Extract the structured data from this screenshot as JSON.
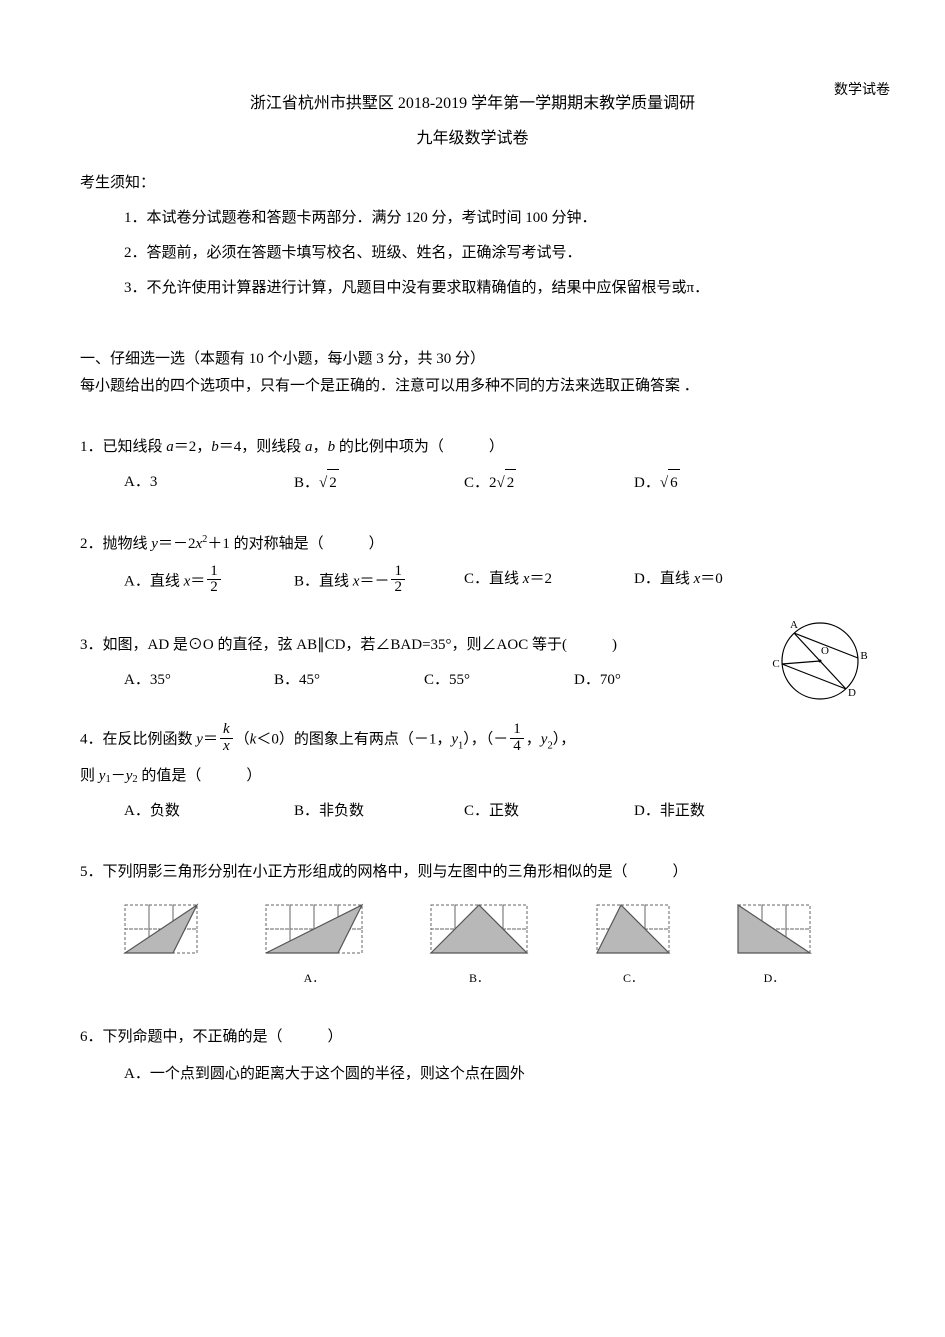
{
  "header_right": "数学试卷",
  "title1": "浙江省杭州市拱墅区 2018-2019 学年第一学期期末教学质量调研",
  "title2": "九年级数学试卷",
  "notice_head": "考生须知：",
  "notice": {
    "n1": "1．本试卷分试题卷和答题卡两部分．满分 120 分，考试时间 100 分钟．",
    "n2": "2．答题前，必须在答题卡填写校名、班级、姓名，正确涂写考试号．",
    "n3": "3．不允许使用计算器进行计算，凡题目中没有要求取精确值的，结果中应保留根号或π．"
  },
  "section1_line1": "一、仔细选一选（本题有 10 个小题，每小题 3 分，共 30 分）",
  "section1_line2": "每小题给出的四个选项中，只有一个是正确的．注意可以用多种不同的方法来选取正确答案 ．",
  "q1": {
    "stem_a": "1．已知线段 ",
    "stem_b": "a",
    "stem_c": "＝2，",
    "stem_d": "b",
    "stem_e": "＝4，则线段 ",
    "stem_f": "a",
    "stem_g": "，",
    "stem_h": "b",
    "stem_i": " 的比例中项为（　　　）",
    "A": "A．3",
    "B_pre": "B．",
    "B_rad": "2",
    "C_pre": "C．2",
    "C_rad": "2",
    "D_pre": "D．",
    "D_rad": "6"
  },
  "q2": {
    "stem_a": "2．抛物线 ",
    "stem_b": "y",
    "stem_c": "＝－2",
    "stem_d": "x",
    "stem_e": "＋1 的对称轴是（　　　）",
    "A_pre": "A．直线 ",
    "A_x": "x",
    "A_eq": "＝",
    "A_num": "1",
    "A_den": "2",
    "B_pre": "B．直线 ",
    "B_x": "x",
    "B_eq": "＝－",
    "B_num": "1",
    "B_den": "2",
    "C_pre": "C．直线 ",
    "C_x": "x",
    "C_val": "＝2",
    "D_pre": "D．直线 ",
    "D_x": "x",
    "D_val": "＝0"
  },
  "q3": {
    "stem": "3．如图，AD 是⊙O 的直径，弦 AB∥CD，若∠BAD=35°，则∠AOC 等于(　　　)",
    "A": "A．35°",
    "B": "B．45°",
    "C": "C．55°",
    "D": "D．70°",
    "labels": {
      "A": "A",
      "B": "B",
      "C": "C",
      "D": "D",
      "O": "O"
    }
  },
  "q4": {
    "stem_a": "4．在反比例函数 ",
    "stem_y": "y",
    "stem_eq": "＝",
    "stem_num": "k",
    "stem_den": "x",
    "stem_b": "（",
    "stem_k": "k",
    "stem_c": "＜0）的图象上有两点（－1，",
    "stem_y1": "y",
    "stem_d": "），（－",
    "stem_fnum": "1",
    "stem_fden": "4",
    "stem_e": "，",
    "stem_y2": "y",
    "stem_f": "），",
    "line2_a": "则 ",
    "line2_y1": "y",
    "line2_b": "－",
    "line2_y2": "y",
    "line2_c": " 的值是（　　　）",
    "A": "A．负数",
    "B": "B．非负数",
    "C": "C．正数",
    "D": "D．非正数"
  },
  "q5": {
    "stem": "5．下列阴影三角形分别在小正方形组成的网格中，则与左图中的三角形相似的是（　　　）",
    "labels": {
      "A": "A．",
      "B": "B．",
      "C": "C．",
      "D": "D．"
    },
    "cell": 24,
    "fill": "#b8b8b8",
    "stroke": "#666666",
    "dash": "3 2"
  },
  "q6": {
    "stem": "6．下列命题中，不正确的是（　　　）",
    "A": "A．一个点到圆心的距离大于这个圆的半径，则这个点在圆外"
  }
}
